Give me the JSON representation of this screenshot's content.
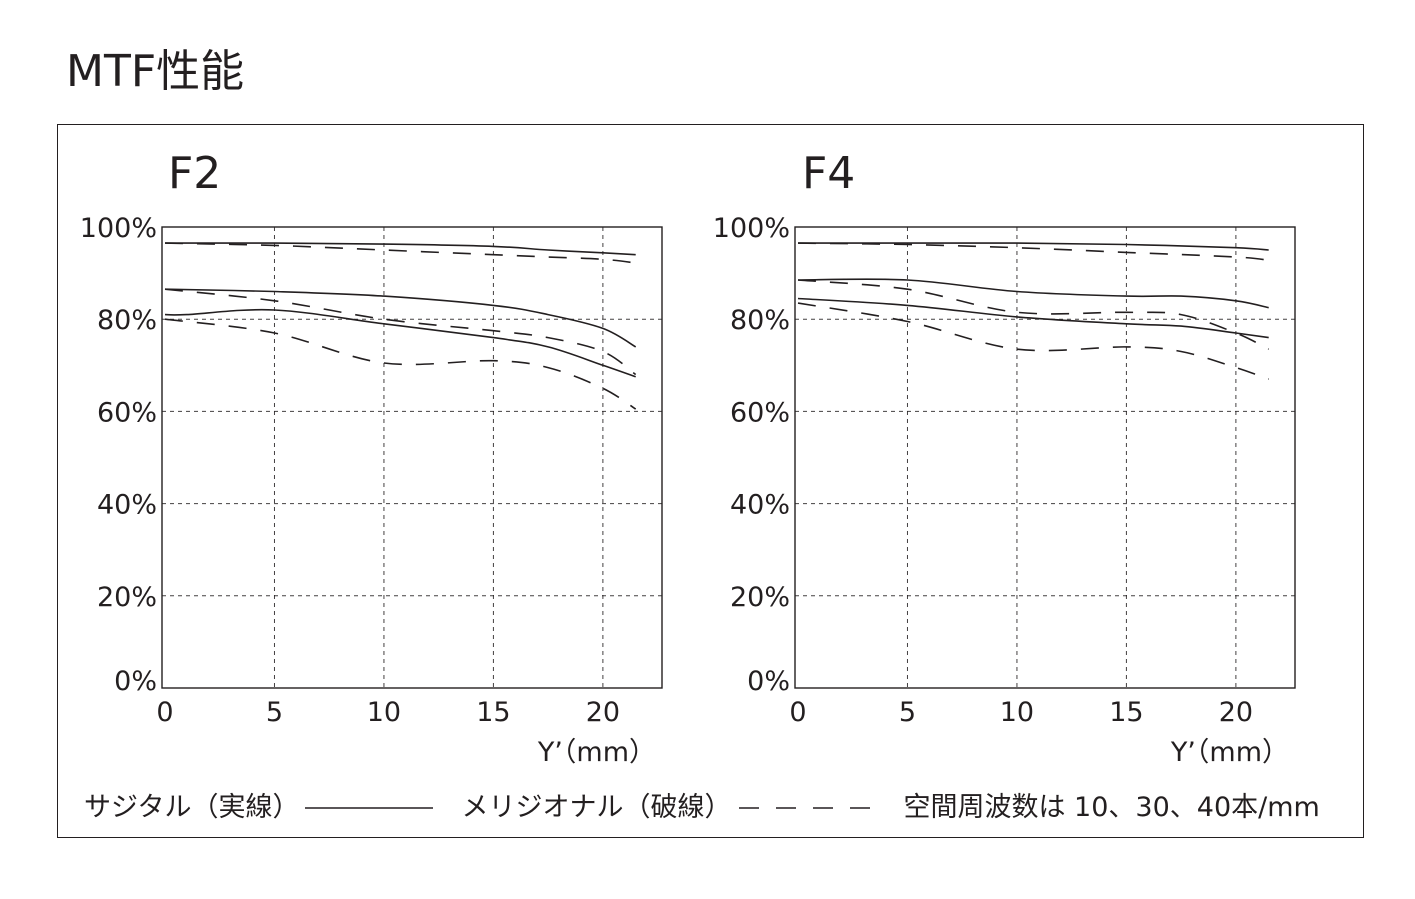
{
  "page_title": "MTF性能",
  "legend": {
    "sagittal": "サジタル（実線）",
    "meridional": "メリジオナル（破線）",
    "frequencies": "空間周波数は 10、30、40本/mm"
  },
  "chart_data": [
    {
      "type": "line",
      "title": "F2",
      "xlabel": "Y’（mm）",
      "ylabel": "",
      "xlim": [
        0,
        22.7
      ],
      "ylim": [
        0,
        100
      ],
      "xticks": [
        0,
        5,
        10,
        15,
        20
      ],
      "yticks": [
        0,
        20,
        40,
        60,
        80,
        100
      ],
      "xtick_labels": [
        "0",
        "5",
        "10",
        "15",
        "20"
      ],
      "ytick_labels": [
        "0%",
        "20%",
        "40%",
        "60%",
        "80%",
        "100%"
      ],
      "grid": true,
      "series": [
        {
          "style": "solid",
          "x": [
            0,
            5,
            10,
            15,
            17.5,
            20,
            21.5
          ],
          "values": [
            96.5,
            96.5,
            96.3,
            95.8,
            95,
            94.4,
            94
          ]
        },
        {
          "style": "dashed",
          "x": [
            0,
            5,
            10,
            15,
            17.5,
            20,
            21.5
          ],
          "values": [
            96.5,
            96,
            95,
            94,
            93.5,
            93,
            92.2
          ]
        },
        {
          "style": "solid",
          "x": [
            0,
            5,
            10,
            15,
            17.5,
            20,
            21.5
          ],
          "values": [
            86.5,
            86,
            85,
            83,
            81,
            78,
            74
          ]
        },
        {
          "style": "dashed",
          "x": [
            0,
            5,
            10,
            15,
            17.5,
            20,
            21.5
          ],
          "values": [
            86.5,
            84,
            80,
            77.5,
            76,
            73,
            68
          ]
        },
        {
          "style": "solid",
          "x": [
            0,
            1,
            5,
            10,
            15,
            17.5,
            20,
            21.5
          ],
          "values": [
            81,
            81,
            82,
            79,
            76,
            74,
            70,
            67.5
          ]
        },
        {
          "style": "dashed",
          "x": [
            0,
            5,
            10,
            15,
            17.5,
            20,
            21.5
          ],
          "values": [
            80,
            77,
            70.5,
            71,
            69.5,
            65,
            60.5
          ]
        }
      ]
    },
    {
      "type": "line",
      "title": "F4",
      "xlabel": "Y’（mm）",
      "ylabel": "",
      "xlim": [
        0,
        22.7
      ],
      "ylim": [
        0,
        100
      ],
      "xticks": [
        0,
        5,
        10,
        15,
        20
      ],
      "yticks": [
        0,
        20,
        40,
        60,
        80,
        100
      ],
      "xtick_labels": [
        "0",
        "5",
        "10",
        "15",
        "20"
      ],
      "ytick_labels": [
        "0%",
        "20%",
        "40%",
        "60%",
        "80%",
        "100%"
      ],
      "grid": true,
      "series": [
        {
          "style": "solid",
          "x": [
            0,
            5,
            10,
            15,
            20,
            21.5
          ],
          "values": [
            96.5,
            96.5,
            96.5,
            96.2,
            95.5,
            95
          ]
        },
        {
          "style": "dashed",
          "x": [
            0,
            5,
            10,
            15,
            20,
            21.5
          ],
          "values": [
            96.5,
            96.2,
            95.5,
            94.5,
            93.5,
            92.8
          ]
        },
        {
          "style": "solid",
          "x": [
            0,
            5,
            10,
            15,
            17.5,
            20,
            21.5
          ],
          "values": [
            88.5,
            88.5,
            86,
            85,
            85,
            84,
            82.5
          ]
        },
        {
          "style": "dashed",
          "x": [
            0,
            5,
            10,
            15,
            17.5,
            20,
            21.5
          ],
          "values": [
            88.5,
            86.5,
            81.5,
            81.5,
            81,
            77,
            73.5
          ]
        },
        {
          "style": "solid",
          "x": [
            0,
            5,
            10,
            15,
            17.5,
            20,
            21.5
          ],
          "values": [
            84.5,
            83,
            80.5,
            79,
            78.5,
            77,
            76
          ]
        },
        {
          "style": "dashed",
          "x": [
            0,
            5,
            10,
            15,
            17.5,
            20,
            21.5
          ],
          "values": [
            83.5,
            79.5,
            73.5,
            74,
            73,
            69.5,
            67
          ]
        }
      ]
    }
  ]
}
